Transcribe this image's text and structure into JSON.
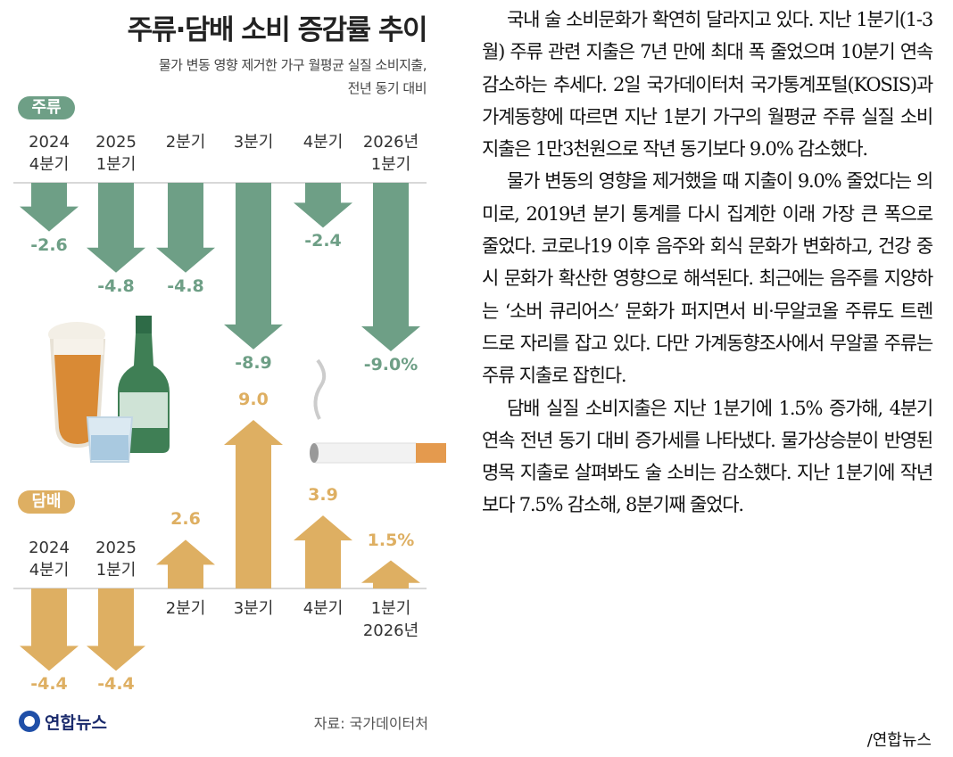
{
  "header": {
    "title": "주류·담배 소비 증감률 추이",
    "subtitle": "물가 변동 영향 제거한 가구 월평균 실질 소비지출,\n전년 동기 대비"
  },
  "chart_data": [
    {
      "type": "bar",
      "title": "주류",
      "color": "#6e9f86",
      "categories": [
        "2024\n4분기",
        "2025\n1분기",
        "2분기",
        "3분기",
        "4분기",
        "2026년\n1분기"
      ],
      "values": [
        -2.6,
        -4.8,
        -4.8,
        -8.9,
        -2.4,
        -9.0
      ],
      "value_labels": [
        "-2.6",
        "-4.8",
        "-4.8",
        "-8.9",
        "-2.4",
        "-9.0%"
      ]
    },
    {
      "type": "bar",
      "title": "담배",
      "color": "#deaf62",
      "categories": [
        "2024\n4분기",
        "2025\n1분기",
        "2분기",
        "3분기",
        "4분기",
        "1분기\n2026년"
      ],
      "values": [
        -4.4,
        -4.4,
        2.6,
        9.0,
        3.9,
        1.5
      ],
      "value_labels": [
        "-4.4",
        "-4.4",
        "2.6",
        "9.0",
        "3.9",
        "1.5%"
      ]
    }
  ],
  "source": "자료: 국가데이터처",
  "logo": "연합뉴스",
  "article": {
    "paragraphs": [
      "국내 술 소비문화가 확연히 달라지고 있다. 지난 1분기(1-3월) 주류 관련 지출은 7년 만에 최대 폭 줄었으며 10분기 연속 감소하는 추세다. 2일 국가데이터처 국가통계포털(KOSIS)과 가계동향에 따르면 지난 1분기 가구의 월평균 주류 실질 소비지출은 1만3천원으로 작년 동기보다 9.0% 감소했다.",
      "물가 변동의 영향을 제거했을 때 지출이 9.0% 줄었다는 의미로, 2019년 분기 통계를 다시 집계한 이래 가장 큰 폭으로 줄었다. 코로나19 이후 음주와 회식 문화가 변화하고, 건강 중시 문화가 확산한 영향으로 해석된다. 최근에는 음주를 지양하는 ‘소버 큐리어스’ 문화가 퍼지면서 비·무알코올 주류도 트렌드로 자리를 잡고 있다. 다만 가계동향조사에서 무알콜 주류는 주류 지출로 잡힌다.",
      "담배 실질 소비지출은 지난 1분기에 1.5% 증가해, 4분기 연속 전년 동기 대비 증가세를 나타냈다. 물가상승분이 반영된 명목 지출로 살펴봐도 술 소비는 감소했다. 지난 1분기에 작년보다 7.5% 감소해, 8분기째 줄었다."
    ],
    "byline": "/연합뉴스"
  }
}
